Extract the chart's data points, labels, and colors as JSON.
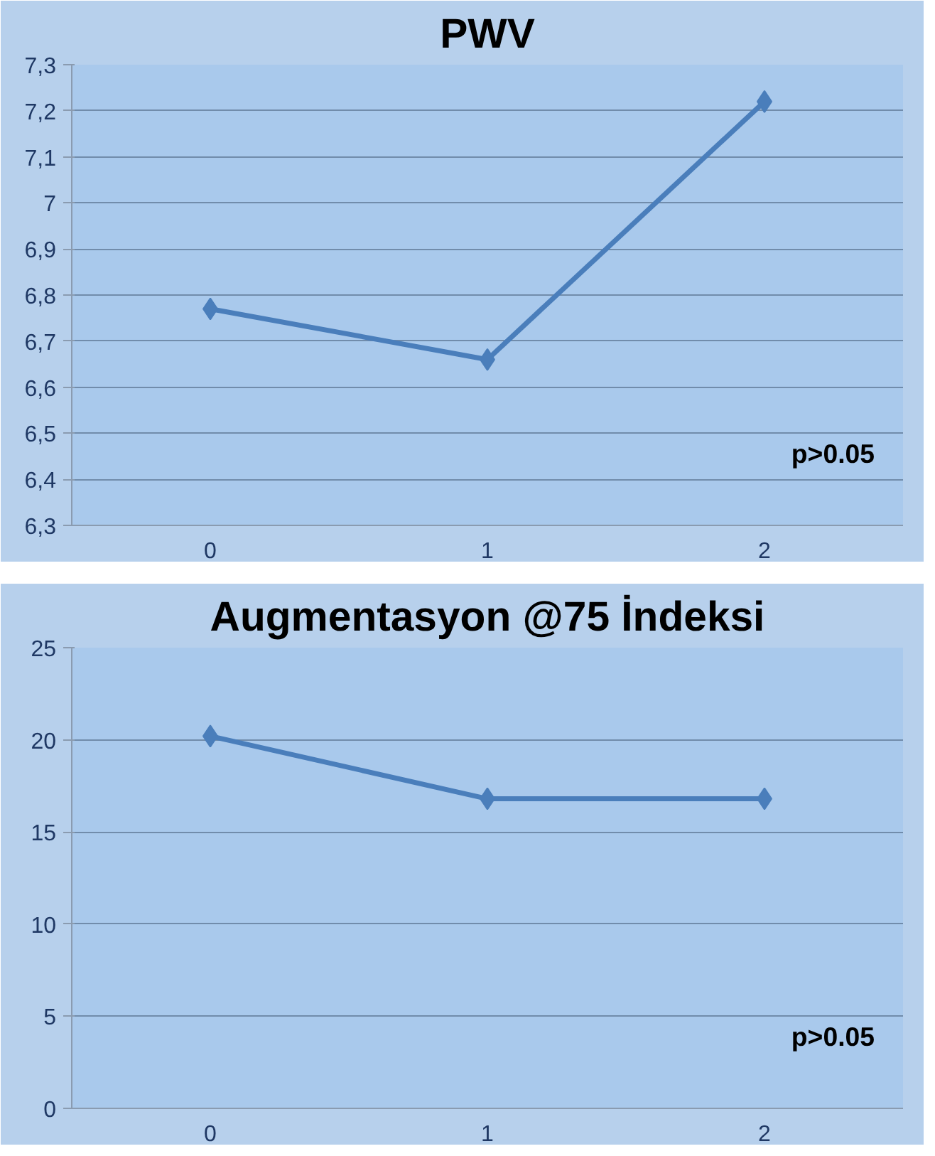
{
  "chart_data": [
    {
      "type": "line",
      "title": "PWV",
      "categories": [
        "0",
        "1",
        "2"
      ],
      "series": [
        {
          "color": "#4a7ebb",
          "values": [
            6.77,
            6.66,
            7.22
          ]
        }
      ],
      "ylim": [
        6.3,
        7.3
      ],
      "yticks": [
        {
          "value": 6.3,
          "label": "6,3"
        },
        {
          "value": 6.4,
          "label": "6,4"
        },
        {
          "value": 6.5,
          "label": "6,5"
        },
        {
          "value": 6.6,
          "label": "6,6"
        },
        {
          "value": 6.7,
          "label": "6,7"
        },
        {
          "value": 6.8,
          "label": "6,8"
        },
        {
          "value": 6.9,
          "label": "6,9"
        },
        7,
        {
          "value": 7.1,
          "label": "7,1"
        },
        {
          "value": 7.2,
          "label": "7,2"
        },
        {
          "value": 7.3,
          "label": "7,3"
        }
      ],
      "grid": "y",
      "marker": "diamond",
      "annotations": [
        "p>0.05"
      ]
    },
    {
      "type": "line",
      "title": "Augmentasyon @75 İndeksi",
      "categories": [
        "0",
        "1",
        "2"
      ],
      "series": [
        {
          "color": "#4a7ebb",
          "values": [
            20.2,
            16.8,
            16.8
          ]
        }
      ],
      "ylim": [
        0,
        25
      ],
      "yticks": [
        0,
        5,
        10,
        15,
        20,
        25
      ],
      "grid": "y",
      "marker": "diamond",
      "annotations": [
        "p>0.05"
      ]
    }
  ]
}
